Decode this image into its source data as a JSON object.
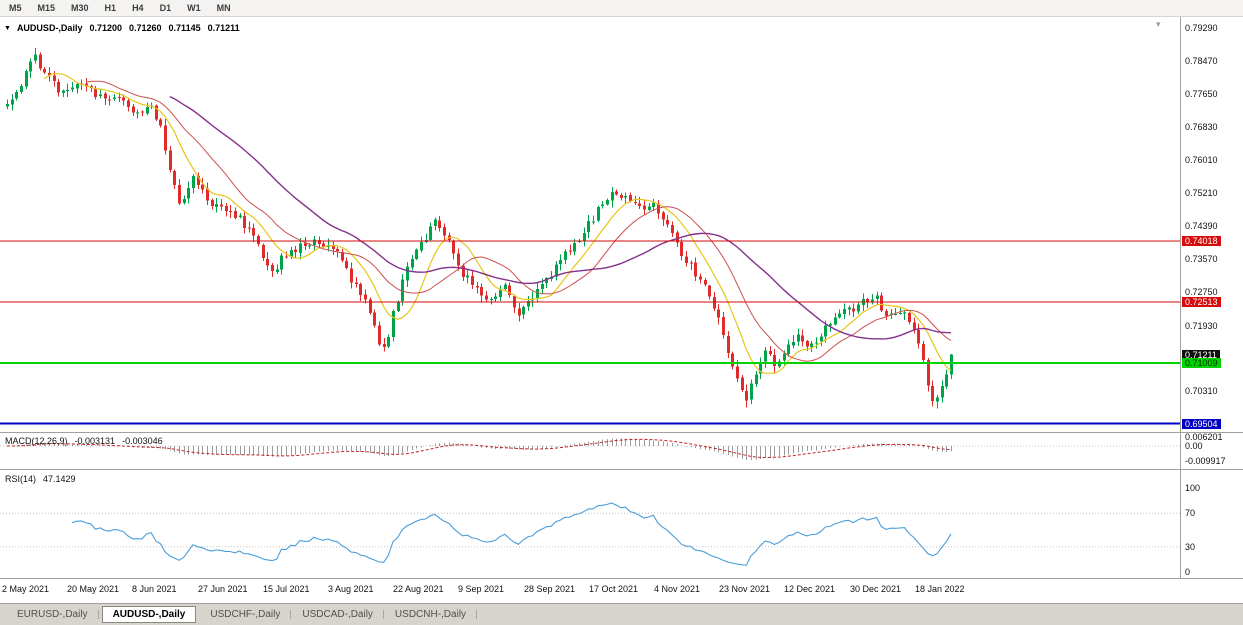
{
  "toolbar": {
    "timeframes": [
      "M5",
      "M15",
      "M30",
      "H1",
      "H4",
      "D1",
      "W1",
      "MN"
    ]
  },
  "icons": {
    "symbol_dropdown": "▼",
    "scroll_marker": "▾"
  },
  "chart_header": {
    "symbol": "AUDUSD-,Daily",
    "open": "0.71200",
    "high": "0.71260",
    "low": "0.71145",
    "close": "0.71211"
  },
  "indicators": {
    "macd": {
      "label": "MACD(12,26,9)",
      "value_main": "-0.003131",
      "value_signal": "-0.003046",
      "axis_ticks": [
        {
          "text": "0.006201",
          "value": 0.006201
        },
        {
          "text": "0.00",
          "value": 0
        },
        {
          "text": "-0.009917",
          "value": -0.009917
        }
      ]
    },
    "rsi": {
      "label": "RSI(14)",
      "value": "47.1429",
      "axis_ticks": [
        {
          "text": "100",
          "value": 100
        },
        {
          "text": "70",
          "value": 70
        },
        {
          "text": "30",
          "value": 30
        },
        {
          "text": "0",
          "value": 0
        }
      ]
    }
  },
  "price_axis": {
    "ticks": [
      {
        "text": "0.79290",
        "value": 0.7929
      },
      {
        "text": "0.78470",
        "value": 0.7847
      },
      {
        "text": "0.77650",
        "value": 0.7765
      },
      {
        "text": "0.76830",
        "value": 0.7683
      },
      {
        "text": "0.76010",
        "value": 0.7601
      },
      {
        "text": "0.75210",
        "value": 0.7521
      },
      {
        "text": "0.74390",
        "value": 0.7439
      },
      {
        "text": "0.73570",
        "value": 0.7357
      },
      {
        "text": "0.72750",
        "value": 0.7275
      },
      {
        "text": "0.71930",
        "value": 0.7193
      },
      {
        "text": "0.70310",
        "value": 0.7031
      }
    ],
    "badges": [
      {
        "text": "0.74018",
        "value": 0.74018,
        "bg": "#d60b0b",
        "fg": "#ffffff"
      },
      {
        "text": "0.72513",
        "value": 0.72513,
        "bg": "#d60b0b",
        "fg": "#ffffff"
      },
      {
        "text": "0.71211",
        "value": 0.71211,
        "bg": "#101010",
        "fg": "#ffffff"
      },
      {
        "text": "0.71009",
        "value": 0.71009,
        "bg": "#00d400",
        "fg": "#002b00"
      },
      {
        "text": "0.69504",
        "value": 0.69504,
        "bg": "#0000c4",
        "fg": "#ffffff"
      }
    ]
  },
  "date_axis": {
    "labels": [
      "2 May 2021",
      "20 May 2021",
      "8 Jun 2021",
      "27 Jun 2021",
      "15 Jul 2021",
      "3 Aug 2021",
      "22 Aug 2021",
      "9 Sep 2021",
      "28 Sep 2021",
      "17 Oct 2021",
      "4 Nov 2021",
      "23 Nov 2021",
      "12 Dec 2021",
      "30 Dec 2021",
      "18 Jan 2022"
    ]
  },
  "tabs": {
    "items": [
      "EURUSD-,Daily",
      "AUDUSD-,Daily",
      "USDCHF-,Daily",
      "USDCAD-,Daily",
      "USDCNH-,Daily"
    ],
    "active_index": 1
  },
  "chart_data": {
    "type": "candlestick",
    "symbol": "AUDUSD",
    "timeframe": "Daily",
    "title": "AUDUSD-,Daily",
    "ohlc": {
      "open": 0.712,
      "high": 0.7126,
      "low": 0.71145,
      "close": 0.71211
    },
    "visible_price_range": {
      "min": 0.693,
      "max": 0.7955
    },
    "bar_count": 204,
    "seed": 20,
    "price_path_anchors": [
      [
        0,
        0.7735
      ],
      [
        0.019,
        0.7805
      ],
      [
        0.026,
        0.7866
      ],
      [
        0.04,
        0.7815
      ],
      [
        0.056,
        0.777
      ],
      [
        0.077,
        0.7788
      ],
      [
        0.099,
        0.7756
      ],
      [
        0.12,
        0.7762
      ],
      [
        0.136,
        0.7722
      ],
      [
        0.151,
        0.7736
      ],
      [
        0.162,
        0.7685
      ],
      [
        0.173,
        0.7562
      ],
      [
        0.183,
        0.7492
      ],
      [
        0.196,
        0.7558
      ],
      [
        0.21,
        0.7512
      ],
      [
        0.226,
        0.748
      ],
      [
        0.247,
        0.7455
      ],
      [
        0.266,
        0.7392
      ],
      [
        0.279,
        0.7312
      ],
      [
        0.291,
        0.736
      ],
      [
        0.31,
        0.7386
      ],
      [
        0.329,
        0.74
      ],
      [
        0.351,
        0.7386
      ],
      [
        0.365,
        0.7302
      ],
      [
        0.379,
        0.7252
      ],
      [
        0.393,
        0.7162
      ],
      [
        0.4,
        0.7124
      ],
      [
        0.411,
        0.7242
      ],
      [
        0.425,
        0.7346
      ],
      [
        0.44,
        0.7396
      ],
      [
        0.453,
        0.7446
      ],
      [
        0.467,
        0.7412
      ],
      [
        0.48,
        0.733
      ],
      [
        0.496,
        0.7282
      ],
      [
        0.512,
        0.7256
      ],
      [
        0.528,
        0.73
      ],
      [
        0.541,
        0.7212
      ],
      [
        0.549,
        0.7236
      ],
      [
        0.565,
        0.7292
      ],
      [
        0.584,
        0.7346
      ],
      [
        0.602,
        0.74
      ],
      [
        0.623,
        0.7466
      ],
      [
        0.641,
        0.7532
      ],
      [
        0.655,
        0.7506
      ],
      [
        0.671,
        0.7486
      ],
      [
        0.683,
        0.75
      ],
      [
        0.697,
        0.7456
      ],
      [
        0.713,
        0.738
      ],
      [
        0.729,
        0.7322
      ],
      [
        0.745,
        0.727
      ],
      [
        0.757,
        0.7182
      ],
      [
        0.771,
        0.7082
      ],
      [
        0.782,
        0.7006
      ],
      [
        0.792,
        0.706
      ],
      [
        0.803,
        0.714
      ],
      [
        0.814,
        0.7092
      ],
      [
        0.827,
        0.714
      ],
      [
        0.84,
        0.717
      ],
      [
        0.853,
        0.7136
      ],
      [
        0.866,
        0.7186
      ],
      [
        0.88,
        0.7234
      ],
      [
        0.893,
        0.7226
      ],
      [
        0.907,
        0.7256
      ],
      [
        0.919,
        0.727
      ],
      [
        0.93,
        0.7216
      ],
      [
        0.94,
        0.723
      ],
      [
        0.951,
        0.7216
      ],
      [
        0.962,
        0.718
      ],
      [
        0.972,
        0.7092
      ],
      [
        0.981,
        0.699
      ],
      [
        0.989,
        0.7032
      ],
      [
        0.997,
        0.7092
      ],
      [
        1,
        0.7121
      ]
    ],
    "horizontal_lines": [
      {
        "value": 0.74018,
        "color": "#d60b0b",
        "width": 1.2
      },
      {
        "value": 0.72513,
        "color": "#d60b0b",
        "width": 1.2
      },
      {
        "value": 0.71009,
        "color": "#00d400",
        "width": 2
      },
      {
        "value": 0.69504,
        "color": "#0000c4",
        "width": 2
      }
    ],
    "moving_averages": [
      {
        "period": 9,
        "color": "#e6c617",
        "width": 1.2
      },
      {
        "period": 18,
        "color": "#cc5050",
        "width": 1
      },
      {
        "period": 36,
        "color": "#84308c",
        "width": 1.4
      }
    ],
    "macd": {
      "fast": 12,
      "slow": 26,
      "signal_period": 9,
      "histogram_color": "#9c9c9c",
      "signal_color": "#c22323"
    },
    "rsi": {
      "period": 14,
      "color": "#4a9edb",
      "levels": [
        70,
        30
      ]
    },
    "candle_colors": {
      "up": "#00a448",
      "down": "#e02b2b",
      "background": "#ffffff"
    }
  }
}
